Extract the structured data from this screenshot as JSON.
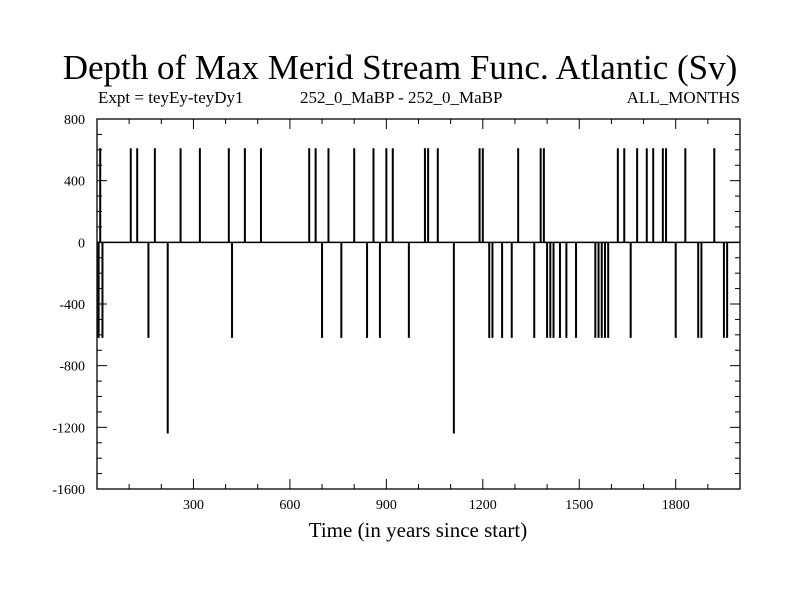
{
  "chart_data": {
    "type": "bar",
    "title": "Depth of Max Merid Stream Func. Atlantic (Sv)",
    "subtitle_left": "Expt = teyEy-teyDy1",
    "subtitle_center": "252_0_MaBP - 252_0_MaBP",
    "subtitle_right": "ALL_MONTHS",
    "xlabel": "Time (in years since start)",
    "ylabel": "",
    "xlim": [
      0,
      2000
    ],
    "ylim": [
      -1600,
      800
    ],
    "xticks": [
      300,
      600,
      900,
      1200,
      1500,
      1800
    ],
    "yticks": [
      800,
      400,
      0,
      -400,
      -800,
      -1200,
      -1600
    ],
    "grid": false,
    "series": [
      {
        "x": [
          5,
          10,
          17,
          105,
          125,
          160,
          180,
          220,
          260,
          320,
          410,
          420,
          460,
          510,
          660,
          680,
          700,
          720,
          760,
          800,
          840,
          860,
          880,
          900,
          920,
          970,
          1020,
          1030,
          1060,
          1110,
          1190,
          1200,
          1220,
          1230,
          1260,
          1290,
          1310,
          1360,
          1380,
          1390,
          1400,
          1410,
          1420,
          1440,
          1460,
          1490,
          1550,
          1560,
          1570,
          1580,
          1590,
          1620,
          1640,
          1660,
          1680,
          1710,
          1730,
          1760,
          1770,
          1800,
          1830,
          1870,
          1880,
          1920,
          1950,
          1960
        ],
        "values": [
          -620,
          610,
          -620,
          610,
          610,
          -620,
          610,
          -1240,
          610,
          610,
          610,
          -620,
          610,
          610,
          610,
          610,
          -620,
          610,
          -620,
          610,
          -620,
          610,
          -620,
          610,
          610,
          -620,
          610,
          610,
          610,
          -1240,
          610,
          610,
          -620,
          -620,
          -620,
          -620,
          610,
          -620,
          610,
          610,
          -620,
          -620,
          -620,
          -620,
          -620,
          -620,
          -620,
          -620,
          -620,
          -620,
          -620,
          610,
          610,
          -620,
          610,
          610,
          610,
          610,
          610,
          -620,
          610,
          -620,
          -620,
          610,
          -620,
          -620
        ]
      }
    ]
  }
}
